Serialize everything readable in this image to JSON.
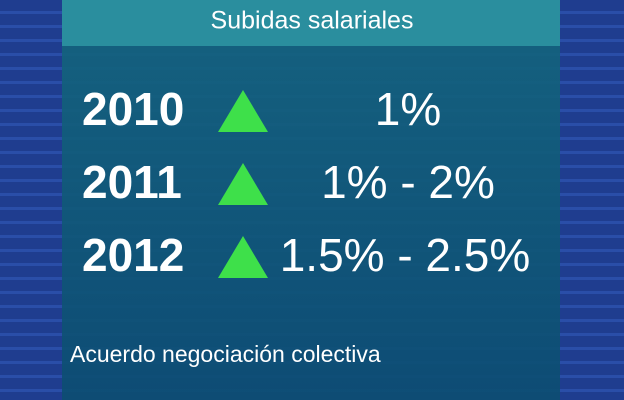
{
  "header": {
    "title": "Subidas salariales"
  },
  "rows": [
    {
      "year": "2010",
      "value": "1%"
    },
    {
      "year": "2011",
      "value": "1% - 2%"
    },
    {
      "year": "2012",
      "value": "1.5% - 2.5%"
    }
  ],
  "footer": {
    "text": "Acuerdo negociación colectiva"
  }
}
